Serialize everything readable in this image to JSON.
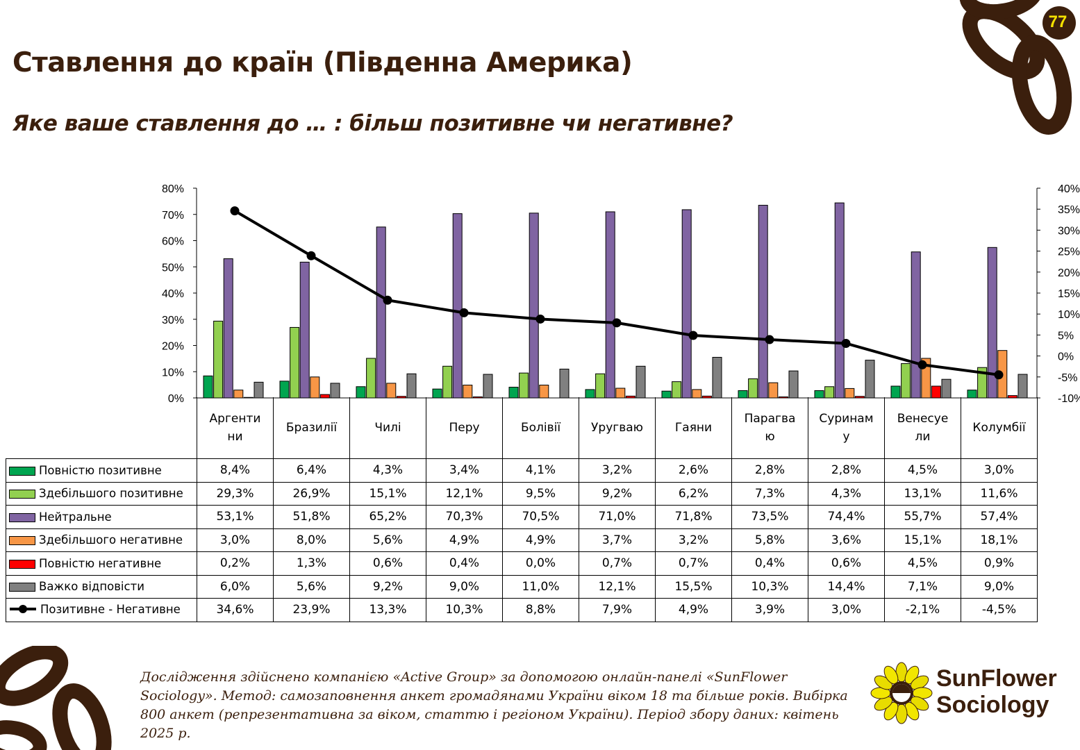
{
  "page_number": "77",
  "title": "Ставлення до країн (Південна Америка)",
  "subtitle": "Яке ваше ставлення до … : більш позитивне чи негативне?",
  "footnote": "Дослідження здійснено компанією «Active Group» за допомогою онлайн-панелі «SunFlower Sociology». Метод: самозаповнення анкет громадянами України віком 18 та більше років. Вибірка 800 анкет (репрезентативна за віком, статтю і регіоном України). Період збору даних: квітень 2025 р.",
  "brand": {
    "line1": "SunFlower",
    "line2": "Sociology"
  },
  "colors": {
    "brand_brown": "#3b1f0d",
    "page_number": "#f5e100",
    "logo_yellow": "#f2e600"
  },
  "chart_data": {
    "type": "bar",
    "categories": [
      "Аргентини",
      "Бразилії",
      "Чилі",
      "Перу",
      "Болівії",
      "Уругваю",
      "Гаяни",
      "Парагваю",
      "Суринаму",
      "Венесуели",
      "Колумбії"
    ],
    "category_labels": [
      [
        "Аргенти",
        "ни"
      ],
      [
        "Бразилії"
      ],
      [
        "Чилі"
      ],
      [
        "Перу"
      ],
      [
        "Болівії"
      ],
      [
        "Уругваю"
      ],
      [
        "Гаяни"
      ],
      [
        "Парагва",
        "ю"
      ],
      [
        "Суринам",
        "у"
      ],
      [
        "Венесуе",
        "ли"
      ],
      [
        "Колумбії"
      ]
    ],
    "y_axis_left": {
      "min": 0,
      "max": 80,
      "step": 10,
      "unit": "%"
    },
    "y_axis_right": {
      "min": -10,
      "max": 40,
      "step": 5,
      "unit": "%"
    },
    "grid": false,
    "legend": "data-table",
    "series": [
      {
        "name": "Повністю позитивне",
        "type": "bar",
        "axis": "left",
        "color": "#00a550",
        "values": [
          8.4,
          6.4,
          4.3,
          3.4,
          4.1,
          3.2,
          2.6,
          2.8,
          2.8,
          4.5,
          3.0
        ],
        "labels": [
          "8,4%",
          "6,4%",
          "4,3%",
          "3,4%",
          "4,1%",
          "3,2%",
          "2,6%",
          "2,8%",
          "2,8%",
          "4,5%",
          "3,0%"
        ]
      },
      {
        "name": "Здебільшого позитивне",
        "type": "bar",
        "axis": "left",
        "color": "#92d050",
        "values": [
          29.3,
          26.9,
          15.1,
          12.1,
          9.5,
          9.2,
          6.2,
          7.3,
          4.3,
          13.1,
          11.6
        ],
        "labels": [
          "29,3%",
          "26,9%",
          "15,1%",
          "12,1%",
          "9,5%",
          "9,2%",
          "6,2%",
          "7,3%",
          "4,3%",
          "13,1%",
          "11,6%"
        ]
      },
      {
        "name": "Нейтральне",
        "type": "bar",
        "axis": "left",
        "color": "#8064a2",
        "values": [
          53.1,
          51.8,
          65.2,
          70.3,
          70.5,
          71.0,
          71.8,
          73.5,
          74.4,
          55.7,
          57.4
        ],
        "labels": [
          "53,1%",
          "51,8%",
          "65,2%",
          "70,3%",
          "70,5%",
          "71,0%",
          "71,8%",
          "73,5%",
          "74,4%",
          "55,7%",
          "57,4%"
        ]
      },
      {
        "name": "Здебільшого негативне",
        "type": "bar",
        "axis": "left",
        "color": "#f79646",
        "values": [
          3.0,
          8.0,
          5.6,
          4.9,
          4.9,
          3.7,
          3.2,
          5.8,
          3.6,
          15.1,
          18.1
        ],
        "labels": [
          "3,0%",
          "8,0%",
          "5,6%",
          "4,9%",
          "4,9%",
          "3,7%",
          "3,2%",
          "5,8%",
          "3,6%",
          "15,1%",
          "18,1%"
        ]
      },
      {
        "name": "Повністю негативне",
        "type": "bar",
        "axis": "left",
        "color": "#ff0000",
        "values": [
          0.2,
          1.3,
          0.6,
          0.4,
          0.0,
          0.7,
          0.7,
          0.4,
          0.6,
          4.5,
          0.9
        ],
        "labels": [
          "0,2%",
          "1,3%",
          "0,6%",
          "0,4%",
          "0,0%",
          "0,7%",
          "0,7%",
          "0,4%",
          "0,6%",
          "4,5%",
          "0,9%"
        ]
      },
      {
        "name": "Важко відповісти",
        "type": "bar",
        "axis": "left",
        "color": "#808080",
        "values": [
          6.0,
          5.6,
          9.2,
          9.0,
          11.0,
          12.1,
          15.5,
          10.3,
          14.4,
          7.1,
          9.0
        ],
        "labels": [
          "6,0%",
          "5,6%",
          "9,2%",
          "9,0%",
          "11,0%",
          "12,1%",
          "15,5%",
          "10,3%",
          "14,4%",
          "7,1%",
          "9,0%"
        ]
      },
      {
        "name": "Позитивне - Негативне",
        "type": "line",
        "axis": "right",
        "color": "#000000",
        "values": [
          34.6,
          23.9,
          13.3,
          10.3,
          8.8,
          7.9,
          4.9,
          3.9,
          3.0,
          -2.1,
          -4.5
        ],
        "labels": [
          "34,6%",
          "23,9%",
          "13,3%",
          "10,3%",
          "8,8%",
          "7,9%",
          "4,9%",
          "3,9%",
          "3,0%",
          "-2,1%",
          "-4,5%"
        ]
      }
    ]
  }
}
